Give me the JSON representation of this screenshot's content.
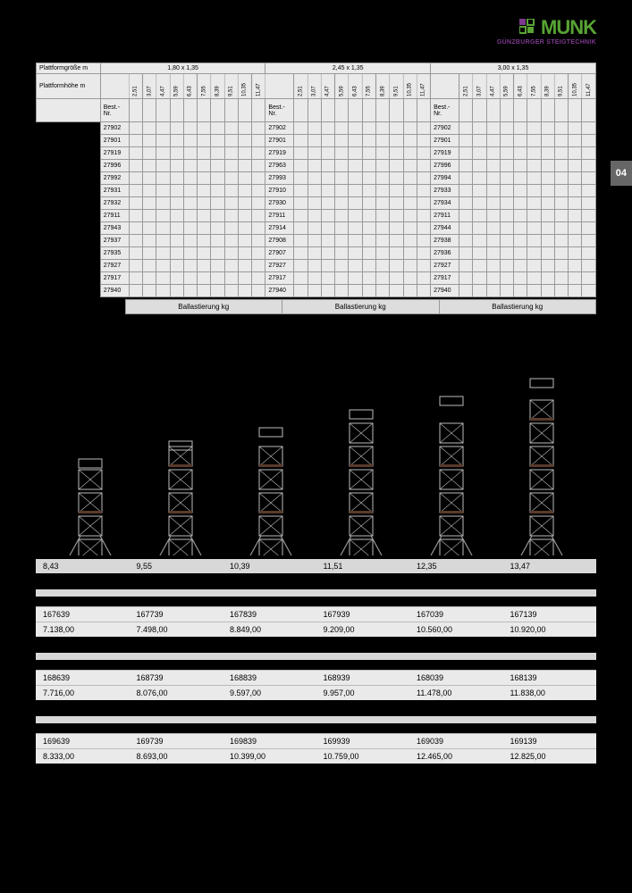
{
  "brand": {
    "name": "MUNK",
    "tagline": "GÜNZBURGER STEIGTECHNIK",
    "logo_green": "#58a333",
    "logo_purple": "#7c3a8e"
  },
  "page_number": "04",
  "table": {
    "size_label": "Plattformgröße m",
    "height_label": "Plattformhöhe m",
    "best_label": "Best.-\nNr.",
    "ballast_label": "Ballastierung kg",
    "sizes": [
      "1,80 x 1,35",
      "2,45 x 1,35",
      "3,00 x 1,35"
    ],
    "heights": [
      "2,51",
      "3,07",
      "4,47",
      "5,59",
      "6,43",
      "7,55",
      "8,39",
      "9,51",
      "10,35",
      "11,47"
    ],
    "groups": [
      {
        "ids": [
          "27902",
          "27901",
          "27919",
          "27996",
          "27992",
          "27931",
          "27932",
          "27911",
          "27943",
          "27937",
          "27935",
          "27927",
          "27917",
          "27940"
        ]
      },
      {
        "ids": [
          "27902",
          "27901",
          "27919",
          "27963",
          "27993",
          "27910",
          "27930",
          "27911",
          "27914",
          "27908",
          "27907",
          "27927",
          "27917",
          "27940"
        ]
      },
      {
        "ids": [
          "27902",
          "27901",
          "27919",
          "27996",
          "27994",
          "27933",
          "27934",
          "27911",
          "27944",
          "27938",
          "27936",
          "27927",
          "27917",
          "27940"
        ]
      }
    ]
  },
  "towers": {
    "heights": [
      "8,43",
      "9,55",
      "10,39",
      "11,51",
      "12,35",
      "13,47"
    ],
    "proportions": [
      110,
      130,
      145,
      165,
      180,
      200
    ]
  },
  "blocks": [
    {
      "row1": [
        "167639",
        "167739",
        "167839",
        "167939",
        "167039",
        "167139"
      ],
      "row2": [
        "7.138,00",
        "7.498,00",
        "8.849,00",
        "9.209,00",
        "10.560,00",
        "10.920,00"
      ]
    },
    {
      "row1": [
        "168639",
        "168739",
        "168839",
        "168939",
        "168039",
        "168139"
      ],
      "row2": [
        "7.716,00",
        "8.076,00",
        "9.597,00",
        "9.957,00",
        "11.478,00",
        "11.838,00"
      ]
    },
    {
      "row1": [
        "169639",
        "169739",
        "169839",
        "169939",
        "169039",
        "169139"
      ],
      "row2": [
        "8.333,00",
        "8.693,00",
        "10.399,00",
        "10.759,00",
        "12.465,00",
        "12.825,00"
      ]
    }
  ],
  "colors": {
    "row_bg": "#eaeaea",
    "hdr_bg": "#ddd",
    "bar_bg": "#d8d8d8",
    "border": "#999"
  }
}
